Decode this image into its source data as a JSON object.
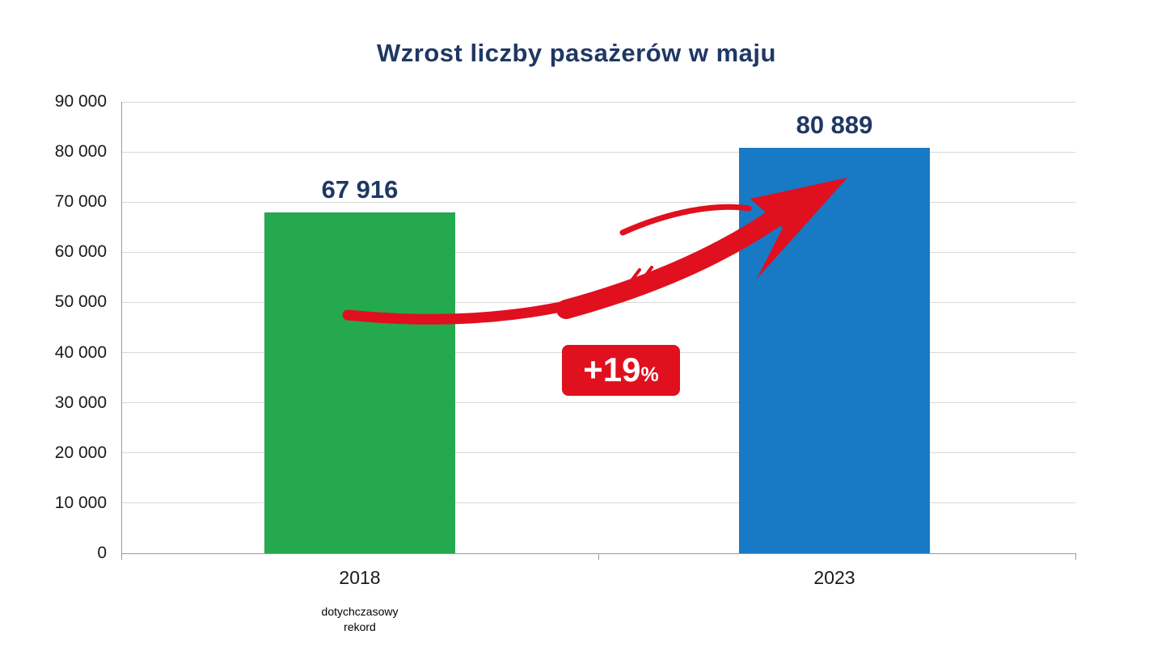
{
  "title": "Wzrost liczby pasażerów w maju",
  "badge": {
    "value": "+19",
    "percent": "%"
  },
  "footnote": {
    "line1": "dotychczasowy",
    "line2": "rekord"
  },
  "colors": {
    "title_text": "#1f3864",
    "value_label_text": "#1f3864",
    "bar_2018": "#24a94f",
    "bar_2023": "#1879c5",
    "arrow": "#e0101e",
    "badge_bg": "#e0101e",
    "badge_text": "#ffffff",
    "gridline": "#d9d9d9",
    "axis_line": "#9b9b9b",
    "tick_text": "#1a1a1a"
  },
  "chart_data": {
    "type": "bar",
    "title": "Wzrost liczby pasażerów w maju",
    "categories": [
      "2018",
      "2023"
    ],
    "values": [
      67916,
      80889
    ],
    "value_labels": [
      "67 916",
      "80 889"
    ],
    "bar_colors": [
      "#24a94f",
      "#1879c5"
    ],
    "xlabel": "",
    "ylabel": "",
    "ylim": [
      0,
      90000
    ],
    "ytick_step": 10000,
    "ytick_labels": [
      "0",
      "10 000",
      "20 000",
      "30 000",
      "40 000",
      "50 000",
      "60 000",
      "70 000",
      "80 000",
      "90 000"
    ],
    "grid": true,
    "legend": false,
    "annotations": [
      {
        "type": "badge",
        "text": "+19%"
      },
      {
        "type": "arrow",
        "from": "2018",
        "to": "2023"
      },
      {
        "type": "note",
        "target": "2018",
        "text": "dotychczasowy rekord"
      }
    ]
  }
}
